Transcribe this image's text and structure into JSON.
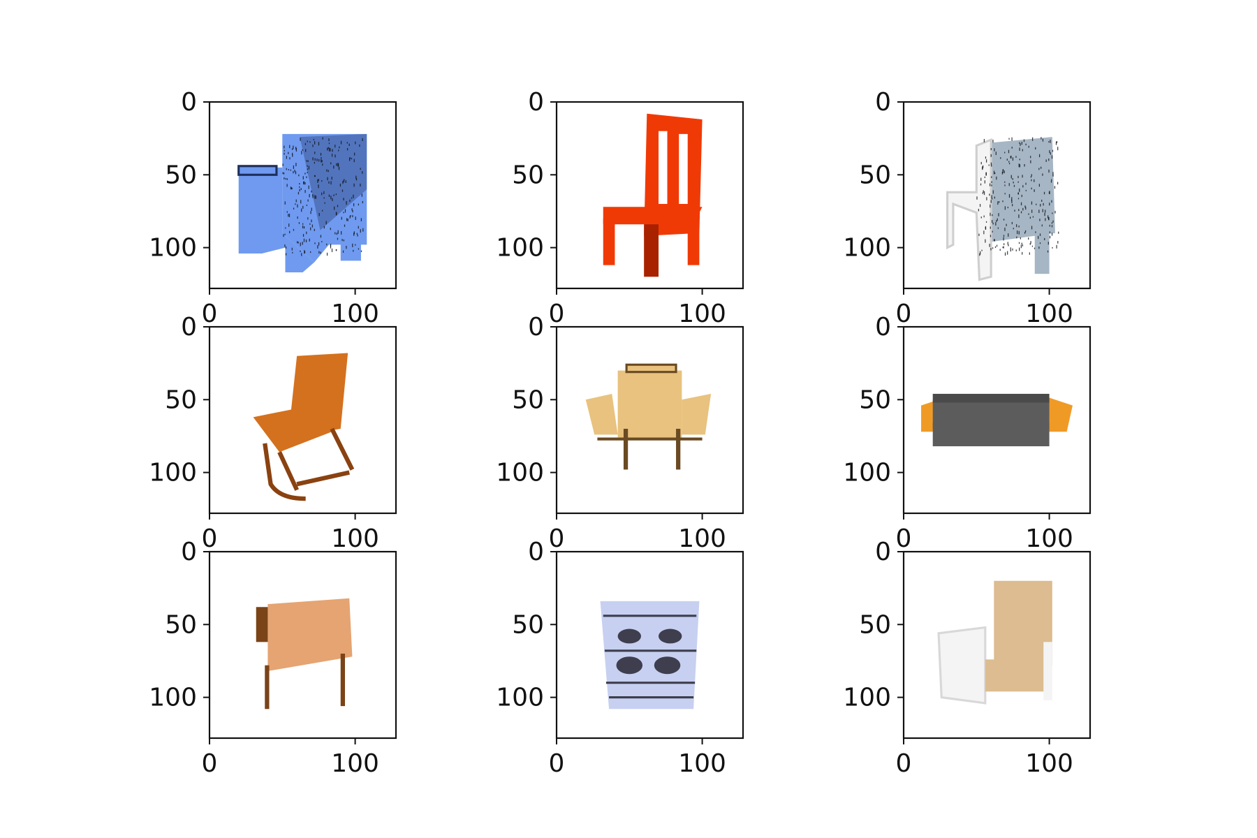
{
  "figure": {
    "background": "#ffffff",
    "axis_color": "#111111"
  },
  "chart_data": {
    "type": "image-grid",
    "rows": 3,
    "cols": 3,
    "x_range": [
      0,
      128
    ],
    "y_range": [
      0,
      128
    ],
    "y_inverted": true,
    "xticks": [
      0,
      100
    ],
    "yticks": [
      0,
      50,
      100
    ],
    "grid": false,
    "panels": [
      {
        "row": 0,
        "col": 0,
        "content": "chair",
        "render": "armchair",
        "color": "#6f9af0",
        "accent": "#1d2f5c",
        "speckle": true
      },
      {
        "row": 0,
        "col": 1,
        "content": "chair",
        "render": "ladderback",
        "color": "#f03a06",
        "accent": "#a82200",
        "speckle": false
      },
      {
        "row": 0,
        "col": 2,
        "content": "chair",
        "render": "sidechair",
        "color": "#a6b6c4",
        "accent": "#f4f4f4",
        "speckle": true
      },
      {
        "row": 1,
        "col": 0,
        "content": "chair",
        "render": "rocker",
        "color": "#d4711e",
        "accent": "#8a4210",
        "speckle": false
      },
      {
        "row": 1,
        "col": 1,
        "content": "chair",
        "render": "lounge",
        "color": "#e8c27e",
        "accent": "#6a4a22",
        "speckle": false
      },
      {
        "row": 1,
        "col": 2,
        "content": "chair",
        "render": "sofa",
        "color": "#5c5c5c",
        "accent": "#f09a26",
        "speckle": false
      },
      {
        "row": 2,
        "col": 0,
        "content": "chair",
        "render": "sling",
        "color": "#e5a472",
        "accent": "#7a4318",
        "speckle": false
      },
      {
        "row": 2,
        "col": 1,
        "content": "chair",
        "render": "cabinet",
        "color": "#c7d0f0",
        "accent": "#3e3e4e",
        "speckle": false
      },
      {
        "row": 2,
        "col": 2,
        "content": "chair",
        "render": "recliner",
        "color": "#dcbc90",
        "accent": "#f4f4f4",
        "speckle": false
      }
    ]
  }
}
